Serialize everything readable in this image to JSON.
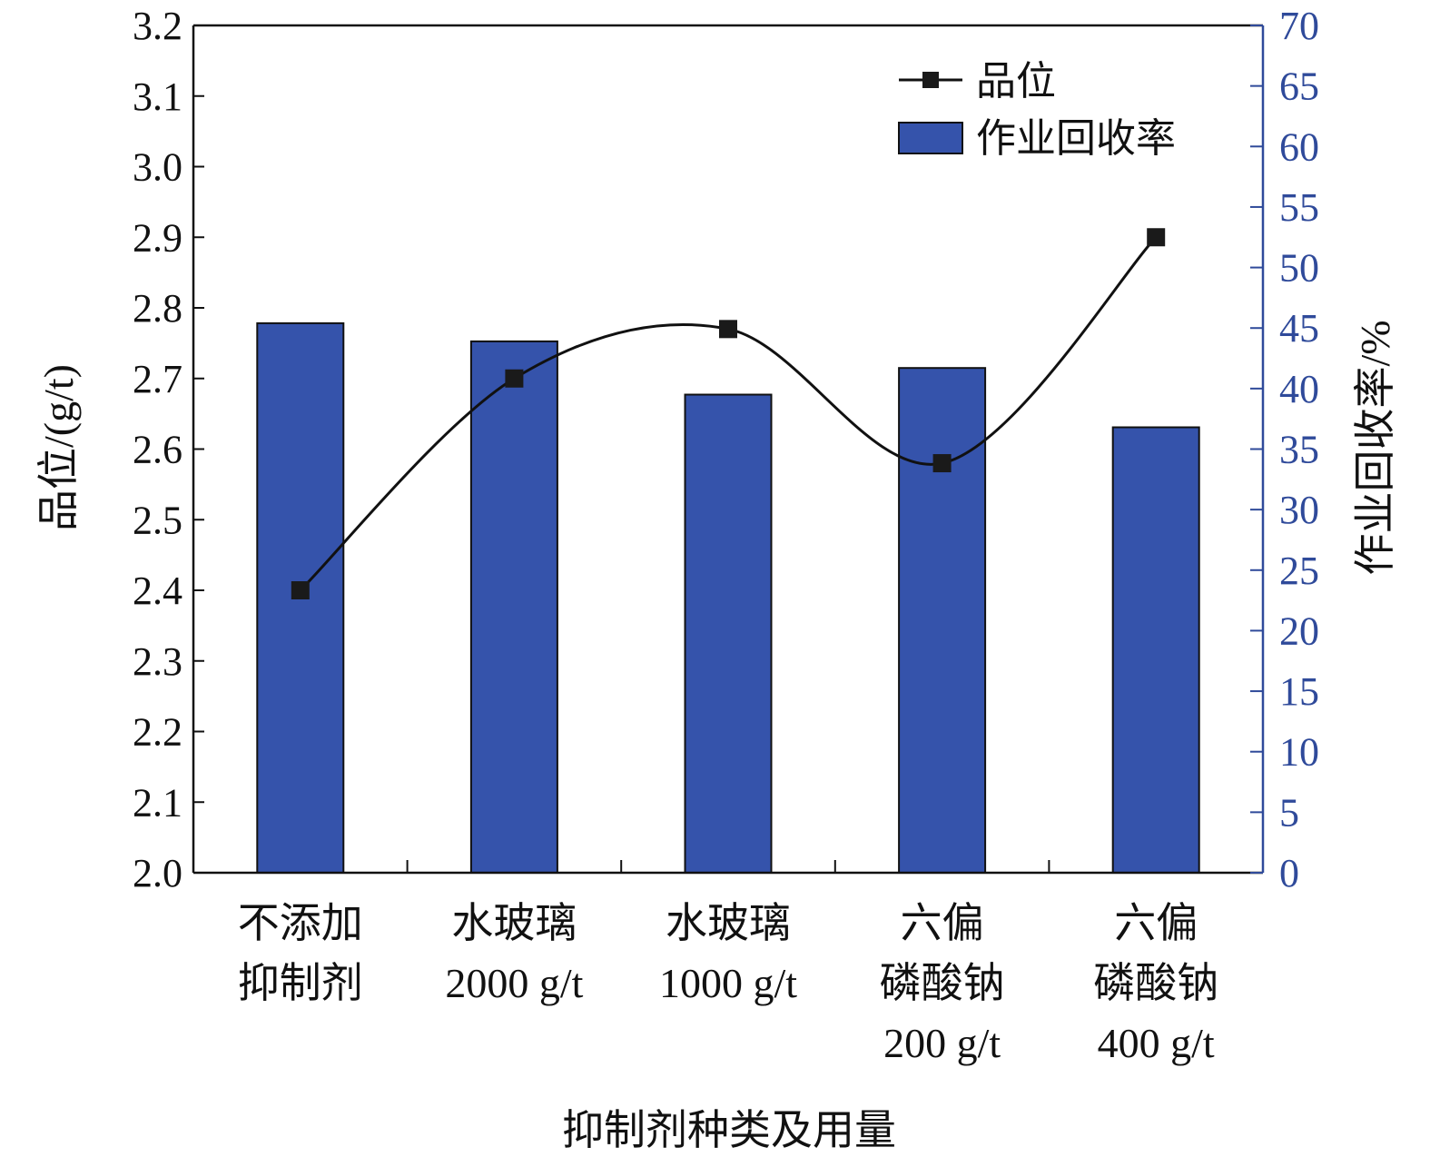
{
  "chart_data": {
    "type": "bar",
    "xlabel": "抑制剂种类及用量",
    "ylabel_left": "品位/(g/t)",
    "ylabel_right": "作业回收率/%",
    "ylim_left": [
      2.0,
      3.2
    ],
    "ylim_right": [
      0,
      70
    ],
    "left_ticks": [
      "2.0",
      "2.1",
      "2.2",
      "2.3",
      "2.4",
      "2.5",
      "2.6",
      "2.7",
      "2.8",
      "2.9",
      "3.0",
      "3.1",
      "3.2"
    ],
    "right_ticks": [
      "0",
      "5",
      "10",
      "15",
      "20",
      "25",
      "30",
      "35",
      "40",
      "45",
      "50",
      "55",
      "60",
      "65",
      "70"
    ],
    "categories": [
      [
        "不添加",
        "抑制剂"
      ],
      [
        "水玻璃",
        "2000 g/t"
      ],
      [
        "水玻璃",
        "1000 g/t"
      ],
      [
        "六偏",
        "磷酸钠",
        "200 g/t"
      ],
      [
        "六偏",
        "磷酸钠",
        "400 g/t"
      ]
    ],
    "series": [
      {
        "name": "品位",
        "type": "line",
        "axis": "left",
        "values": [
          2.4,
          2.7,
          2.77,
          2.58,
          2.9
        ]
      },
      {
        "name": "作业回收率",
        "type": "bar",
        "axis": "right",
        "values": [
          45.4,
          43.9,
          39.5,
          41.7,
          36.8
        ]
      }
    ],
    "legend_position": "top-right",
    "colors": {
      "bar": "#3553ab",
      "line": "#111111",
      "right_axis": "#2f4a9a"
    }
  }
}
